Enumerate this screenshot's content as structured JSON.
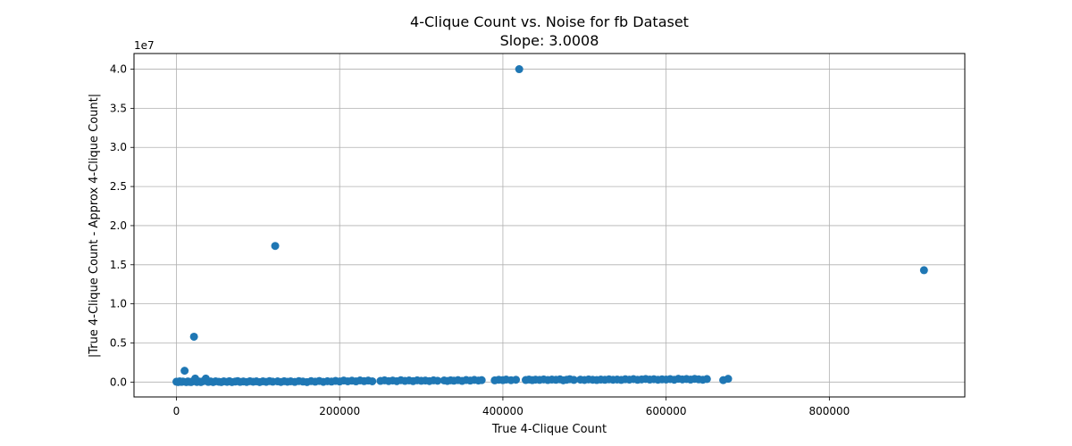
{
  "chart_data": {
    "type": "scatter",
    "title": "4-Clique Count vs. Noise for fb Dataset",
    "subtitle": "Slope: 3.0008",
    "xlabel": "True 4-Clique Count",
    "ylabel": "|True 4-Clique Count - Approx 4-Clique Count|",
    "y_offset_label": "1e7",
    "xlim": [
      -52000,
      966000
    ],
    "ylim": [
      -1900000,
      42000000
    ],
    "x_ticks": [
      0,
      200000,
      400000,
      600000,
      800000
    ],
    "x_tick_labels": [
      "0",
      "200000",
      "400000",
      "600000",
      "800000"
    ],
    "y_ticks": [
      0,
      5000000,
      10000000,
      15000000,
      20000000,
      25000000,
      30000000,
      35000000,
      40000000
    ],
    "y_tick_labels": [
      "0.0",
      "0.5",
      "1.0",
      "1.5",
      "2.0",
      "2.5",
      "3.0",
      "3.5",
      "4.0"
    ],
    "grid": true,
    "marker_color": "#1f77b4",
    "outliers": [
      {
        "x": 420000,
        "y": 40000000
      },
      {
        "x": 121000,
        "y": 17400000
      },
      {
        "x": 916000,
        "y": 14300000
      },
      {
        "x": 21500,
        "y": 5800000
      },
      {
        "x": 10000,
        "y": 1450000
      },
      {
        "x": 36000,
        "y": 450000
      },
      {
        "x": 23000,
        "y": 450000
      },
      {
        "x": 676000,
        "y": 420000
      },
      {
        "x": 670000,
        "y": 250000
      }
    ],
    "points": [
      {
        "x": 0,
        "y": 50000
      },
      {
        "x": 2000,
        "y": 0
      },
      {
        "x": 4000,
        "y": 100000
      },
      {
        "x": 6000,
        "y": 20000
      },
      {
        "x": 8000,
        "y": 60000
      },
      {
        "x": 12000,
        "y": 0
      },
      {
        "x": 14000,
        "y": 80000
      },
      {
        "x": 16000,
        "y": 30000
      },
      {
        "x": 18000,
        "y": 0
      },
      {
        "x": 20000,
        "y": 90000
      },
      {
        "x": 25000,
        "y": 10000
      },
      {
        "x": 28000,
        "y": 70000
      },
      {
        "x": 30000,
        "y": 0
      },
      {
        "x": 33000,
        "y": 120000
      },
      {
        "x": 39000,
        "y": 20000
      },
      {
        "x": 42000,
        "y": 80000
      },
      {
        "x": 45000,
        "y": 0
      },
      {
        "x": 48000,
        "y": 100000
      },
      {
        "x": 52000,
        "y": 40000
      },
      {
        "x": 55000,
        "y": 0
      },
      {
        "x": 58000,
        "y": 90000
      },
      {
        "x": 62000,
        "y": 30000
      },
      {
        "x": 65000,
        "y": 110000
      },
      {
        "x": 68000,
        "y": 0
      },
      {
        "x": 72000,
        "y": 60000
      },
      {
        "x": 75000,
        "y": 120000
      },
      {
        "x": 78000,
        "y": 20000
      },
      {
        "x": 82000,
        "y": 80000
      },
      {
        "x": 86000,
        "y": 10000
      },
      {
        "x": 90000,
        "y": 110000
      },
      {
        "x": 94000,
        "y": 40000
      },
      {
        "x": 98000,
        "y": 90000
      },
      {
        "x": 102000,
        "y": 0
      },
      {
        "x": 106000,
        "y": 100000
      },
      {
        "x": 110000,
        "y": 30000
      },
      {
        "x": 114000,
        "y": 120000
      },
      {
        "x": 118000,
        "y": 50000
      },
      {
        "x": 124000,
        "y": 90000
      },
      {
        "x": 128000,
        "y": 10000
      },
      {
        "x": 132000,
        "y": 110000
      },
      {
        "x": 136000,
        "y": 40000
      },
      {
        "x": 140000,
        "y": 100000
      },
      {
        "x": 145000,
        "y": 20000
      },
      {
        "x": 150000,
        "y": 130000
      },
      {
        "x": 155000,
        "y": 60000
      },
      {
        "x": 160000,
        "y": 0
      },
      {
        "x": 165000,
        "y": 120000
      },
      {
        "x": 170000,
        "y": 50000
      },
      {
        "x": 175000,
        "y": 140000
      },
      {
        "x": 180000,
        "y": 30000
      },
      {
        "x": 185000,
        "y": 110000
      },
      {
        "x": 190000,
        "y": 60000
      },
      {
        "x": 195000,
        "y": 150000
      },
      {
        "x": 200000,
        "y": 80000
      },
      {
        "x": 205000,
        "y": 200000
      },
      {
        "x": 210000,
        "y": 100000
      },
      {
        "x": 215000,
        "y": 180000
      },
      {
        "x": 220000,
        "y": 90000
      },
      {
        "x": 225000,
        "y": 210000
      },
      {
        "x": 230000,
        "y": 120000
      },
      {
        "x": 235000,
        "y": 190000
      },
      {
        "x": 240000,
        "y": 100000
      },
      {
        "x": 250000,
        "y": 150000
      },
      {
        "x": 255000,
        "y": 220000
      },
      {
        "x": 260000,
        "y": 130000
      },
      {
        "x": 265000,
        "y": 200000
      },
      {
        "x": 270000,
        "y": 110000
      },
      {
        "x": 275000,
        "y": 240000
      },
      {
        "x": 280000,
        "y": 150000
      },
      {
        "x": 285000,
        "y": 210000
      },
      {
        "x": 290000,
        "y": 120000
      },
      {
        "x": 295000,
        "y": 230000
      },
      {
        "x": 300000,
        "y": 160000
      },
      {
        "x": 305000,
        "y": 200000
      },
      {
        "x": 310000,
        "y": 130000
      },
      {
        "x": 315000,
        "y": 220000
      },
      {
        "x": 320000,
        "y": 170000
      },
      {
        "x": 328000,
        "y": 210000
      },
      {
        "x": 332000,
        "y": 140000
      },
      {
        "x": 336000,
        "y": 230000
      },
      {
        "x": 340000,
        "y": 180000
      },
      {
        "x": 345000,
        "y": 250000
      },
      {
        "x": 350000,
        "y": 150000
      },
      {
        "x": 355000,
        "y": 260000
      },
      {
        "x": 360000,
        "y": 190000
      },
      {
        "x": 365000,
        "y": 280000
      },
      {
        "x": 370000,
        "y": 200000
      },
      {
        "x": 374000,
        "y": 250000
      },
      {
        "x": 390000,
        "y": 220000
      },
      {
        "x": 395000,
        "y": 300000
      },
      {
        "x": 400000,
        "y": 250000
      },
      {
        "x": 404000,
        "y": 320000
      },
      {
        "x": 410000,
        "y": 240000
      },
      {
        "x": 416000,
        "y": 300000
      },
      {
        "x": 428000,
        "y": 260000
      },
      {
        "x": 432000,
        "y": 330000
      },
      {
        "x": 436000,
        "y": 250000
      },
      {
        "x": 440000,
        "y": 310000
      },
      {
        "x": 445000,
        "y": 280000
      },
      {
        "x": 450000,
        "y": 340000
      },
      {
        "x": 455000,
        "y": 260000
      },
      {
        "x": 460000,
        "y": 320000
      },
      {
        "x": 465000,
        "y": 290000
      },
      {
        "x": 470000,
        "y": 350000
      },
      {
        "x": 474000,
        "y": 230000
      },
      {
        "x": 478000,
        "y": 300000
      },
      {
        "x": 482000,
        "y": 370000
      },
      {
        "x": 487000,
        "y": 280000
      },
      {
        "x": 495000,
        "y": 310000
      },
      {
        "x": 500000,
        "y": 270000
      },
      {
        "x": 505000,
        "y": 340000
      },
      {
        "x": 510000,
        "y": 300000
      },
      {
        "x": 515000,
        "y": 260000
      },
      {
        "x": 520000,
        "y": 320000
      },
      {
        "x": 525000,
        "y": 290000
      },
      {
        "x": 530000,
        "y": 350000
      },
      {
        "x": 535000,
        "y": 300000
      },
      {
        "x": 540000,
        "y": 330000
      },
      {
        "x": 545000,
        "y": 280000
      },
      {
        "x": 550000,
        "y": 360000
      },
      {
        "x": 555000,
        "y": 310000
      },
      {
        "x": 560000,
        "y": 380000
      },
      {
        "x": 565000,
        "y": 290000
      },
      {
        "x": 570000,
        "y": 340000
      },
      {
        "x": 575000,
        "y": 400000
      },
      {
        "x": 580000,
        "y": 320000
      },
      {
        "x": 585000,
        "y": 370000
      },
      {
        "x": 590000,
        "y": 300000
      },
      {
        "x": 595000,
        "y": 350000
      },
      {
        "x": 600000,
        "y": 330000
      },
      {
        "x": 605000,
        "y": 380000
      },
      {
        "x": 610000,
        "y": 300000
      },
      {
        "x": 615000,
        "y": 420000
      },
      {
        "x": 620000,
        "y": 340000
      },
      {
        "x": 625000,
        "y": 390000
      },
      {
        "x": 630000,
        "y": 320000
      },
      {
        "x": 635000,
        "y": 410000
      },
      {
        "x": 640000,
        "y": 350000
      },
      {
        "x": 645000,
        "y": 300000
      },
      {
        "x": 650000,
        "y": 390000
      }
    ]
  }
}
